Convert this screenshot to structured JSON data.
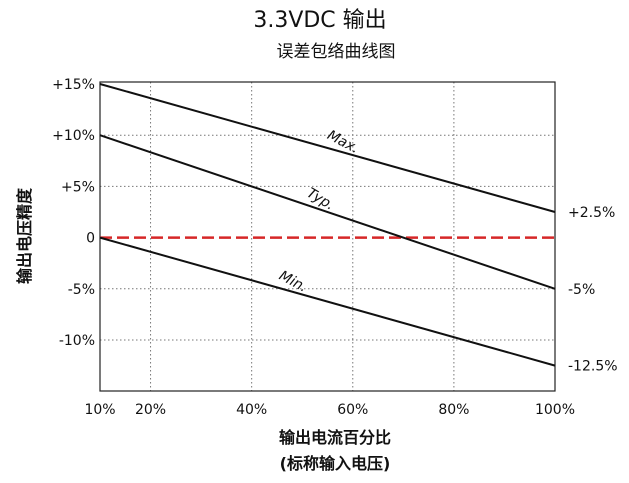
{
  "chart_data": {
    "type": "line",
    "title": "3.3VDC 输出",
    "subtitle": "误差包络曲线图",
    "xlabel": "输出电流百分比",
    "xlabel_sub": "(标称输入电压)",
    "ylabel": "输出电压精度",
    "xlim": [
      10,
      100
    ],
    "ylim": [
      -15,
      15
    ],
    "x_ticks": [
      10,
      20,
      40,
      60,
      80,
      100
    ],
    "x_tick_labels": [
      "10%",
      "20%",
      "40%",
      "60%",
      "80%",
      "100%"
    ],
    "y_ticks": [
      15,
      10,
      5,
      0,
      -5,
      -10
    ],
    "y_tick_labels": [
      "+15%",
      "+10%",
      "+5%",
      "0",
      "-5%",
      "-10%"
    ],
    "grid": true,
    "series": [
      {
        "name": "Max.",
        "x": [
          10,
          100
        ],
        "values": [
          15,
          2.5
        ],
        "end_label": "+2.5%"
      },
      {
        "name": "Typ.",
        "x": [
          10,
          100
        ],
        "values": [
          10,
          -5
        ],
        "end_label": "-5%"
      },
      {
        "name": "Min.",
        "x": [
          10,
          100
        ],
        "values": [
          0,
          -12.5
        ],
        "end_label": "-12.5%"
      }
    ],
    "reference_line": {
      "y": 0,
      "color": "#d62728",
      "style": "dashed"
    },
    "colors": {
      "series": "#111111",
      "reference": "#d62728",
      "grid": "#777777"
    }
  }
}
